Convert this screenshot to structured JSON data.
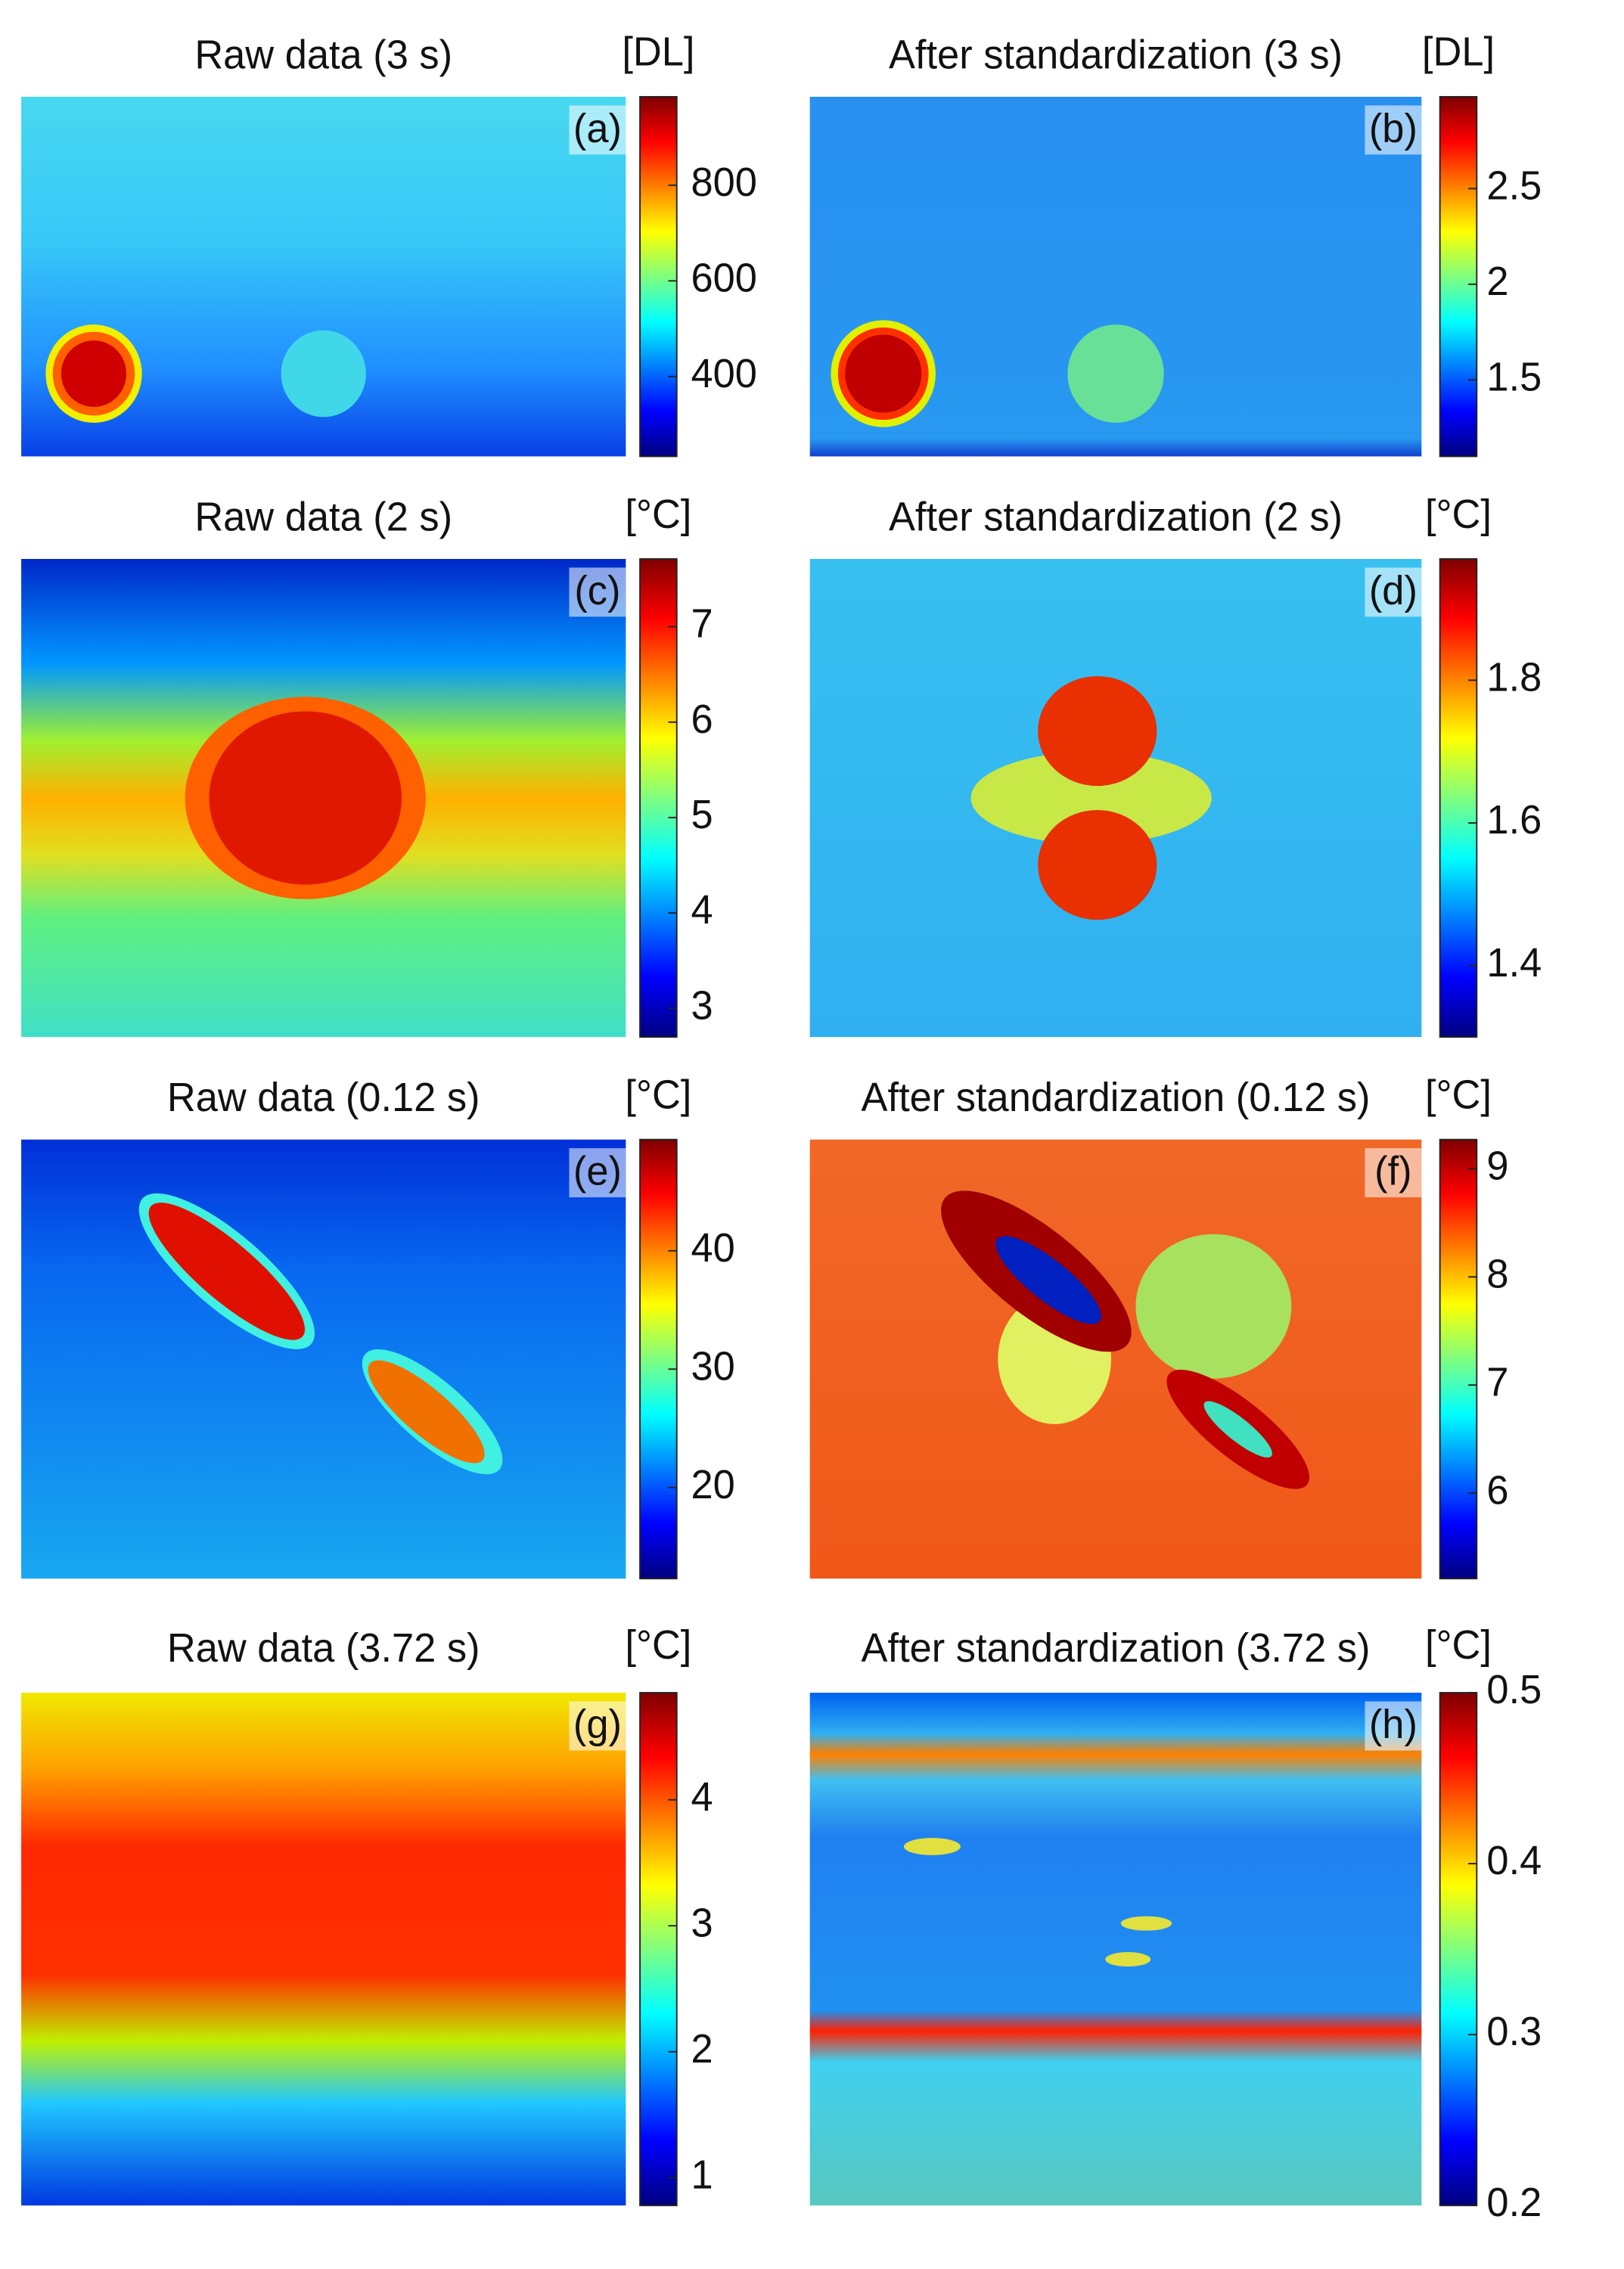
{
  "chart_data": [
    {
      "type": "heatmap",
      "title": "Raw data (3 s)",
      "colorbar_label": "[DL]",
      "panel_label": "(a)",
      "colormap": "jet",
      "clim": [
        233,
        985
      ],
      "cticks": [
        400,
        600,
        800
      ]
    },
    {
      "type": "heatmap",
      "title": "After standardization (3 s)",
      "colorbar_label": "[DL]",
      "panel_label": "(b)",
      "colormap": "jet",
      "clim": [
        1.1,
        2.98
      ],
      "cticks": [
        1.5,
        2,
        2.5
      ]
    },
    {
      "type": "heatmap",
      "title": "Raw data (2 s)",
      "colorbar_label": "[°C]",
      "panel_label": "(c)",
      "colormap": "jet",
      "clim": [
        2.7,
        7.71
      ],
      "cticks": [
        3,
        4,
        5,
        6,
        7
      ]
    },
    {
      "type": "heatmap",
      "title": "After standardization (2 s)",
      "colorbar_label": "[°C]",
      "panel_label": "(d)",
      "colormap": "jet",
      "clim": [
        1.3,
        1.97
      ],
      "cticks": [
        1.4,
        1.6,
        1.8
      ]
    },
    {
      "type": "heatmap",
      "title": "Raw data (0.12 s)",
      "colorbar_label": "[°C]",
      "panel_label": "(e)",
      "colormap": "jet",
      "clim": [
        12.3,
        49.4
      ],
      "cticks": [
        20,
        30,
        40
      ]
    },
    {
      "type": "heatmap",
      "title": "After standardization (0.12 s)",
      "colorbar_label": "[°C]",
      "panel_label": "(f)",
      "colormap": "jet",
      "clim": [
        5.21,
        9.27
      ],
      "cticks": [
        6,
        7,
        8,
        9
      ]
    },
    {
      "type": "heatmap",
      "title": "Raw data (3.72 s)",
      "colorbar_label": "[°C]",
      "panel_label": "(g)",
      "colormap": "jet",
      "clim": [
        0.78,
        4.85
      ],
      "cticks": [
        1,
        2,
        3,
        4
      ]
    },
    {
      "type": "heatmap",
      "title": "After standardization (3.72 s)",
      "colorbar_label": "[°C]",
      "panel_label": "(h)",
      "colormap": "jet",
      "clim": [
        0.2,
        0.5
      ],
      "cticks": [
        0.2,
        0.3,
        0.4,
        0.5
      ]
    }
  ]
}
